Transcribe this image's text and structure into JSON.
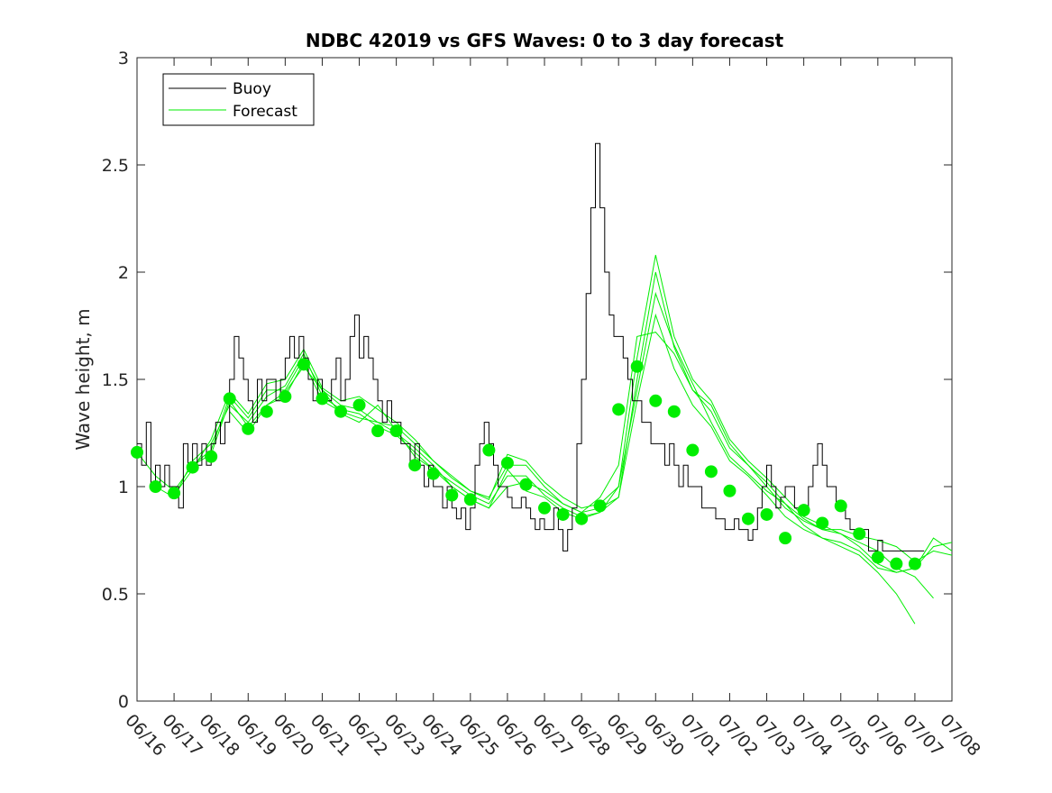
{
  "chart_data": {
    "type": "line",
    "title": "NDBC 42019 vs GFS Waves: 0 to 3 day forecast",
    "ylabel": "Wave height, m",
    "xlabel": "",
    "ylim": [
      0,
      3
    ],
    "yticks": [
      "0",
      "0.5",
      "1",
      "1.5",
      "2",
      "2.5",
      "3"
    ],
    "xticks": [
      "06/16",
      "06/17",
      "06/18",
      "06/19",
      "06/20",
      "06/21",
      "06/22",
      "06/23",
      "06/24",
      "06/25",
      "06/26",
      "06/27",
      "06/28",
      "06/29",
      "06/30",
      "07/01",
      "07/02",
      "07/03",
      "07/04",
      "07/05",
      "07/06",
      "07/07",
      "07/08"
    ],
    "x_range_days": [
      0,
      22
    ],
    "grid": false,
    "legend": {
      "position": "top-left",
      "entries": [
        {
          "label": "Buoy",
          "color": "#000000"
        },
        {
          "label": "Forecast",
          "color": "#00ee00"
        }
      ]
    },
    "colors": {
      "buoy": "#000000",
      "forecast": "#00ee00",
      "analysis_marker": "#00ee00"
    },
    "series": [
      {
        "kind": "buoy",
        "x": [
          0,
          0.125,
          0.25,
          0.375,
          0.5,
          0.625,
          0.75,
          0.875,
          1,
          1.125,
          1.25,
          1.375,
          1.5,
          1.625,
          1.75,
          1.875,
          2,
          2.125,
          2.25,
          2.375,
          2.5,
          2.625,
          2.75,
          2.875,
          3,
          3.125,
          3.25,
          3.375,
          3.5,
          3.625,
          3.75,
          3.875,
          4,
          4.125,
          4.25,
          4.375,
          4.5,
          4.625,
          4.75,
          4.875,
          5,
          5.125,
          5.25,
          5.375,
          5.5,
          5.625,
          5.75,
          5.875,
          6,
          6.125,
          6.25,
          6.375,
          6.5,
          6.625,
          6.75,
          6.875,
          7,
          7.125,
          7.25,
          7.375,
          7.5,
          7.625,
          7.75,
          7.875,
          8,
          8.125,
          8.25,
          8.375,
          8.5,
          8.625,
          8.75,
          8.875,
          9,
          9.125,
          9.25,
          9.375,
          9.5,
          9.625,
          9.75,
          9.875,
          10,
          10.125,
          10.25,
          10.375,
          10.5,
          10.625,
          10.75,
          10.875,
          11,
          11.125,
          11.25,
          11.375,
          11.5,
          11.625,
          11.75,
          11.875,
          12,
          12.125,
          12.25,
          12.375,
          12.5,
          12.625,
          12.75,
          12.875,
          13,
          13.125,
          13.25,
          13.375,
          13.5,
          13.625,
          13.75,
          13.875,
          14,
          14.125,
          14.25,
          14.375,
          14.5,
          14.625,
          14.75,
          14.875,
          15,
          15.125,
          15.25,
          15.375,
          15.5,
          15.625,
          15.75,
          15.875,
          16,
          16.125,
          16.25,
          16.375,
          16.5,
          16.625,
          16.75,
          16.875,
          17,
          17.125,
          17.25,
          17.375,
          17.5,
          17.625,
          17.75,
          17.875,
          18,
          18.125,
          18.25,
          18.375,
          18.5,
          18.625,
          18.75,
          18.875,
          19,
          19.125,
          19.25,
          19.375,
          19.5,
          19.625,
          19.75,
          19.875,
          20,
          20.125,
          20.25,
          20.375,
          20.5,
          20.625,
          20.75,
          20.875,
          21,
          21.25
        ],
        "values": [
          1.2,
          1.1,
          1.3,
          1.0,
          1.1,
          1.0,
          1.1,
          1.0,
          1.0,
          0.9,
          1.2,
          1.1,
          1.2,
          1.1,
          1.2,
          1.1,
          1.2,
          1.3,
          1.2,
          1.3,
          1.5,
          1.7,
          1.6,
          1.5,
          1.4,
          1.3,
          1.5,
          1.4,
          1.5,
          1.5,
          1.4,
          1.5,
          1.6,
          1.7,
          1.6,
          1.7,
          1.6,
          1.5,
          1.4,
          1.5,
          1.4,
          1.4,
          1.5,
          1.6,
          1.4,
          1.5,
          1.7,
          1.8,
          1.6,
          1.7,
          1.6,
          1.5,
          1.4,
          1.3,
          1.4,
          1.3,
          1.3,
          1.2,
          1.2,
          1.1,
          1.2,
          1.1,
          1.0,
          1.1,
          1.0,
          1.0,
          0.9,
          1.0,
          0.9,
          0.85,
          0.9,
          0.8,
          0.9,
          1.1,
          1.2,
          1.3,
          1.2,
          1.1,
          1.0,
          1.0,
          0.95,
          0.9,
          0.9,
          0.95,
          0.9,
          0.85,
          0.8,
          0.85,
          0.8,
          0.8,
          0.9,
          0.8,
          0.7,
          0.8,
          0.9,
          1.2,
          1.5,
          1.9,
          2.3,
          2.6,
          2.3,
          2.0,
          1.8,
          1.7,
          1.7,
          1.6,
          1.5,
          1.4,
          1.4,
          1.3,
          1.3,
          1.2,
          1.2,
          1.2,
          1.1,
          1.2,
          1.1,
          1.0,
          1.1,
          1.0,
          1.0,
          1.0,
          0.9,
          0.9,
          0.9,
          0.85,
          0.85,
          0.8,
          0.8,
          0.85,
          0.8,
          0.8,
          0.75,
          0.8,
          0.9,
          1.0,
          1.1,
          1.0,
          0.9,
          0.95,
          1.0,
          1.0,
          0.9,
          0.9,
          0.9,
          1.0,
          1.1,
          1.2,
          1.1,
          1.0,
          1.0,
          0.9,
          0.9,
          0.85,
          0.8,
          0.8,
          0.8,
          0.8,
          0.7,
          0.7,
          0.75,
          0.7,
          0.7,
          0.7,
          0.7,
          0.7,
          0.7,
          0.7,
          0.7,
          0.7
        ]
      },
      {
        "kind": "forecast",
        "x": [
          0,
          0.5,
          1,
          1.5,
          2,
          2.5,
          3,
          3.5,
          4,
          4.5,
          5,
          5.5,
          6,
          6.5,
          7,
          7.5,
          8,
          8.5,
          9,
          9.5,
          10,
          10.5,
          11,
          11.5,
          12,
          12.5,
          13,
          13.5,
          14,
          14.5,
          15,
          15.5,
          16,
          16.5,
          17,
          17.5,
          18,
          18.5,
          19,
          19.5,
          20,
          20.5,
          21,
          21.5,
          22
        ],
        "values": [
          1.16,
          1.05,
          0.98,
          1.1,
          1.17,
          1.42,
          1.32,
          1.45,
          1.45,
          1.6,
          1.45,
          1.38,
          1.36,
          1.3,
          1.28,
          1.2,
          1.12,
          1.05,
          0.98,
          0.95,
          1.1,
          1.1,
          1.0,
          0.92,
          0.88,
          0.9,
          0.95,
          1.5,
          2.0,
          1.65,
          1.45,
          1.35,
          1.18,
          1.1,
          1.02,
          0.92,
          0.85,
          0.8,
          0.8,
          0.77,
          0.75,
          0.72,
          0.65,
          0.7,
          0.68
        ]
      },
      {
        "kind": "forecast",
        "x": [
          0.5,
          1,
          1.5,
          2,
          2.5,
          3,
          3.5,
          4,
          4.5,
          5,
          5.5,
          6,
          6.5,
          7,
          7.5,
          8,
          8.5,
          9,
          9.5,
          10,
          10.5,
          11,
          11.5,
          12,
          12.5,
          13,
          13.5,
          14,
          14.5,
          15,
          15.5,
          16,
          16.5,
          17,
          17.5,
          18,
          18.5,
          19,
          19.5,
          20,
          20.5,
          21
        ],
        "values": [
          1.0,
          0.95,
          1.12,
          1.2,
          1.38,
          1.3,
          1.42,
          1.47,
          1.62,
          1.42,
          1.36,
          1.34,
          1.28,
          1.24,
          1.16,
          1.08,
          1.02,
          0.96,
          0.92,
          1.05,
          1.05,
          0.96,
          0.9,
          0.86,
          0.88,
          0.95,
          1.4,
          1.8,
          1.55,
          1.38,
          1.28,
          1.12,
          1.05,
          0.96,
          0.86,
          0.8,
          0.76,
          0.72,
          0.68,
          0.6,
          0.5,
          0.36
        ]
      },
      {
        "kind": "forecast",
        "x": [
          1,
          1.5,
          2,
          2.5,
          3,
          3.5,
          4,
          4.5,
          5,
          5.5,
          6,
          6.5,
          7,
          7.5,
          8,
          8.5,
          9,
          9.5,
          10,
          10.5,
          11,
          11.5,
          12,
          12.5,
          13,
          13.5,
          14,
          14.5,
          15,
          15.5,
          16,
          16.5,
          17,
          17.5,
          18,
          18.5,
          19,
          19.5,
          20,
          20.5,
          21,
          21.5
        ],
        "values": [
          0.96,
          1.08,
          1.22,
          1.44,
          1.34,
          1.48,
          1.5,
          1.64,
          1.46,
          1.4,
          1.42,
          1.36,
          1.3,
          1.22,
          1.12,
          1.04,
          0.98,
          0.94,
          1.15,
          1.12,
          1.02,
          0.95,
          0.9,
          0.92,
          1.0,
          1.6,
          2.08,
          1.7,
          1.5,
          1.4,
          1.22,
          1.12,
          1.04,
          0.95,
          0.86,
          0.82,
          0.78,
          0.74,
          0.7,
          0.62,
          0.58,
          0.48
        ]
      },
      {
        "kind": "forecast",
        "x": [
          1.5,
          2,
          2.5,
          3,
          3.5,
          4,
          4.5,
          5,
          5.5,
          6,
          6.5,
          7,
          7.5,
          8,
          8.5,
          9,
          9.5,
          10,
          10.5,
          11,
          11.5,
          12,
          12.5,
          13,
          13.5,
          14,
          14.5,
          15,
          15.5,
          16,
          16.5,
          17,
          17.5,
          18,
          18.5,
          19,
          19.5,
          20,
          20.5,
          21,
          21.5,
          22
        ],
        "values": [
          1.1,
          1.15,
          1.4,
          1.28,
          1.38,
          1.42,
          1.58,
          1.4,
          1.35,
          1.32,
          1.3,
          1.25,
          1.18,
          1.1,
          1.0,
          0.94,
          0.9,
          1.0,
          1.02,
          0.98,
          0.92,
          0.88,
          0.95,
          1.1,
          1.7,
          1.72,
          1.62,
          1.45,
          1.38,
          1.2,
          1.1,
          1.0,
          0.9,
          0.84,
          0.8,
          0.78,
          0.72,
          0.64,
          0.6,
          0.62,
          0.72,
          0.74
        ]
      },
      {
        "kind": "forecast",
        "x": [
          2.5,
          3,
          3.5,
          4,
          4.5,
          5,
          5.5,
          6,
          6.5,
          7,
          7.5,
          8,
          8.5,
          9,
          9.5,
          10,
          10.5,
          11,
          11.5,
          12,
          12.5,
          13,
          13.5,
          14,
          14.5,
          15,
          15.5,
          16,
          16.5,
          17,
          17.5,
          18,
          18.5,
          19,
          19.5,
          20,
          20.5,
          21,
          21.5,
          22
        ],
        "values": [
          1.35,
          1.25,
          1.38,
          1.44,
          1.56,
          1.45,
          1.34,
          1.3,
          1.38,
          1.26,
          1.14,
          1.08,
          1.0,
          0.94,
          0.9,
          1.08,
          0.98,
          0.95,
          0.88,
          0.85,
          0.88,
          1.0,
          1.45,
          1.9,
          1.66,
          1.48,
          1.3,
          1.14,
          1.06,
          0.98,
          0.92,
          0.82,
          0.76,
          0.74,
          0.7,
          0.62,
          0.6,
          0.62,
          0.76,
          0.7
        ]
      }
    ],
    "analysis_markers": {
      "x": [
        0,
        0.5,
        1,
        1.5,
        2,
        2.5,
        3,
        3.5,
        4,
        4.5,
        5,
        5.5,
        6,
        6.5,
        7,
        7.5,
        8,
        8.5,
        9,
        9.5,
        10,
        10.5,
        11,
        11.5,
        12,
        12.5,
        13,
        13.5,
        14,
        14.5,
        15,
        15.5,
        16,
        16.5,
        17,
        17.5,
        18,
        18.5,
        19,
        19.5,
        20,
        20.5,
        21
      ],
      "values": [
        1.16,
        1.0,
        0.97,
        1.09,
        1.14,
        1.41,
        1.27,
        1.35,
        1.42,
        1.57,
        1.41,
        1.35,
        1.38,
        1.26,
        1.26,
        1.1,
        1.06,
        0.96,
        0.94,
        1.17,
        1.11,
        1.01,
        0.9,
        0.87,
        0.85,
        0.91,
        1.36,
        1.56,
        1.4,
        1.35,
        1.17,
        1.07,
        0.98,
        0.85,
        0.87,
        0.76,
        0.89,
        0.83,
        0.91,
        0.78,
        0.67,
        0.64,
        0.64
      ]
    }
  }
}
